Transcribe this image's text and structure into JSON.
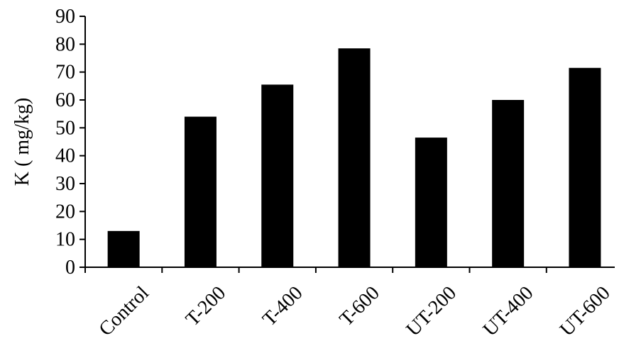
{
  "chart_data": {
    "type": "bar",
    "title": "",
    "xlabel": "",
    "ylabel": "K ( mg/kg)",
    "categories": [
      "Control",
      "T-200",
      "T-400",
      "T-600",
      "UT-200",
      "UT-400",
      "UT-600"
    ],
    "values": [
      13,
      54,
      65.5,
      78.5,
      46.5,
      60,
      71.5
    ],
    "ylim": [
      0,
      90
    ],
    "yticks": [
      0,
      10,
      20,
      30,
      40,
      50,
      60,
      70,
      80,
      90
    ],
    "grid": false,
    "legend": "none",
    "colors": {
      "bar": "#000000",
      "axis": "#000000",
      "background": "#ffffff"
    }
  }
}
